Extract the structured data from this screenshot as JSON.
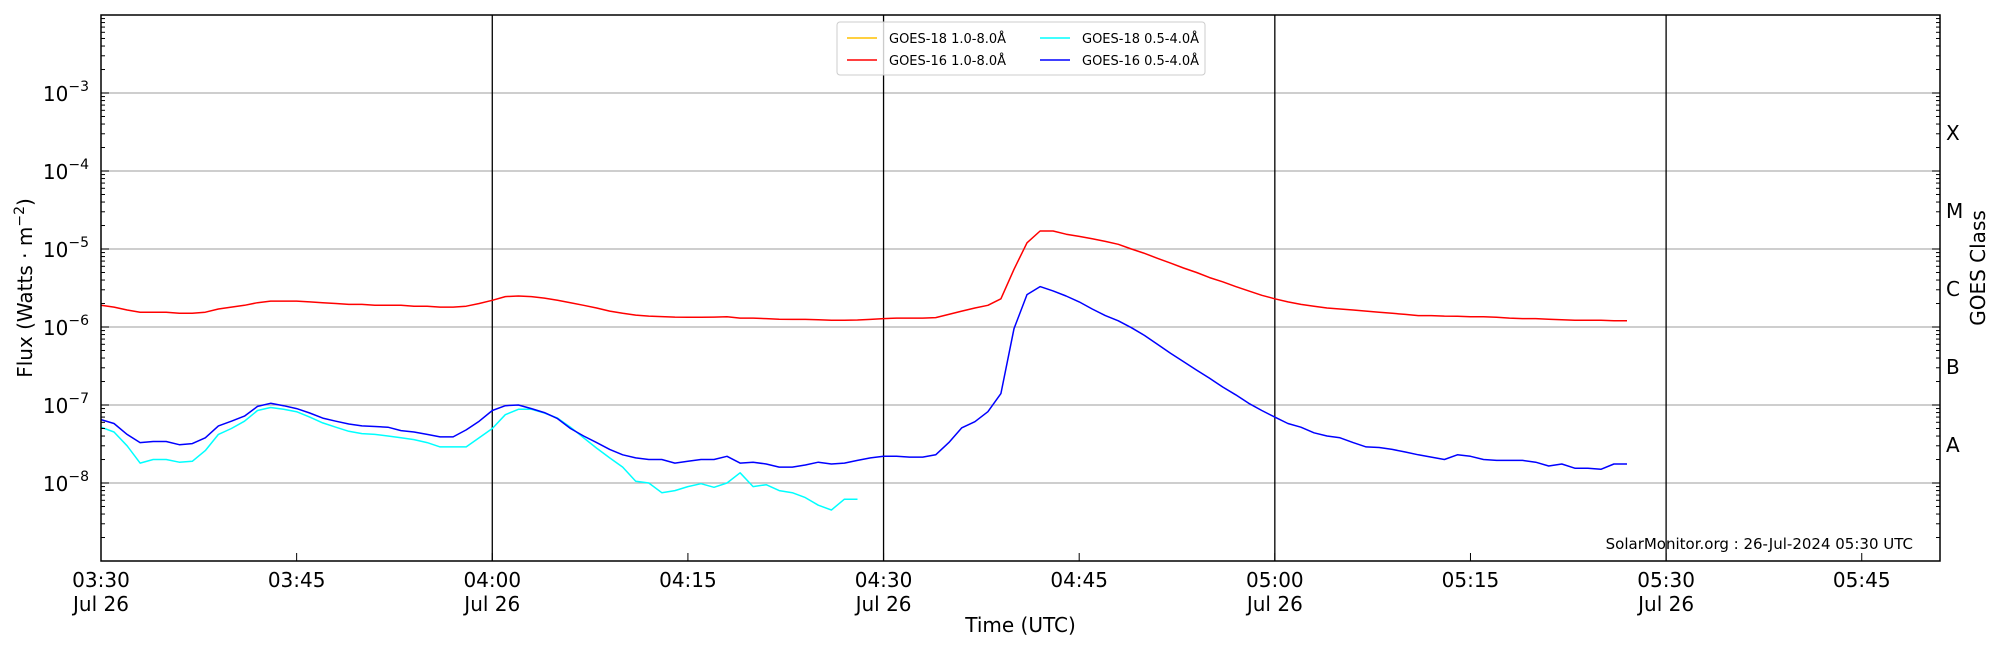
{
  "chart_data": {
    "type": "line",
    "title": "",
    "xlabel": "Time (UTC)",
    "ylabel": "Flux (Watts · m",
    "ylabel_exp": "−2",
    "ylabel_close": ")",
    "right_ylabel": "GOES Class",
    "yscale": "log",
    "ylim": [
      1e-09,
      0.01
    ],
    "xlim_minutes_after_start": [
      0,
      141
    ],
    "x_start": "03:30",
    "x_step_minutes": 1,
    "grid": "horizontal at decades",
    "legend_placement": "top-center",
    "watermark": "SolarMonitor.org : 26-Jul-2024 05:30 UTC",
    "x_ticks": [
      {
        "min": 0,
        "time": "03:30",
        "date": "Jul 26"
      },
      {
        "min": 15,
        "time": "03:45",
        "date": ""
      },
      {
        "min": 30,
        "time": "04:00",
        "date": "Jul 26"
      },
      {
        "min": 45,
        "time": "04:15",
        "date": ""
      },
      {
        "min": 60,
        "time": "04:30",
        "date": "Jul 26"
      },
      {
        "min": 75,
        "time": "04:45",
        "date": ""
      },
      {
        "min": 90,
        "time": "05:00",
        "date": "Jul 26"
      },
      {
        "min": 105,
        "time": "05:15",
        "date": ""
      },
      {
        "min": 120,
        "time": "05:30",
        "date": "Jul 26"
      },
      {
        "min": 135,
        "time": "05:45",
        "date": ""
      }
    ],
    "vertical_markers_min": [
      30,
      60,
      90,
      120
    ],
    "y_ticks": [
      {
        "exp": -3,
        "base": "10",
        "sup": "−3"
      },
      {
        "exp": -4,
        "base": "10",
        "sup": "−4"
      },
      {
        "exp": -5,
        "base": "10",
        "sup": "−5"
      },
      {
        "exp": -6,
        "base": "10",
        "sup": "−6"
      },
      {
        "exp": -7,
        "base": "10",
        "sup": "−7"
      },
      {
        "exp": -8,
        "base": "10",
        "sup": "−8"
      }
    ],
    "goes_classes": [
      {
        "label": "X",
        "log": -3.5
      },
      {
        "label": "M",
        "log": -4.5
      },
      {
        "label": "C",
        "log": -5.5
      },
      {
        "label": "B",
        "log": -6.5
      },
      {
        "label": "A",
        "log": -7.5
      }
    ],
    "series": [
      {
        "name": "GOES-18 1.0-8.0Å",
        "color": "#ffc000",
        "values": []
      },
      {
        "name": "GOES-16 1.0-8.0Å",
        "color": "#ff0000",
        "values": [
          1.9e-06,
          1.8e-06,
          1.65e-06,
          1.55e-06,
          1.55e-06,
          1.55e-06,
          1.5e-06,
          1.5e-06,
          1.55e-06,
          1.7e-06,
          1.8e-06,
          1.9e-06,
          2.05e-06,
          2.15e-06,
          2.15e-06,
          2.15e-06,
          2.1e-06,
          2.05e-06,
          2e-06,
          1.95e-06,
          1.95e-06,
          1.9e-06,
          1.9e-06,
          1.9e-06,
          1.85e-06,
          1.85e-06,
          1.8e-06,
          1.8e-06,
          1.85e-06,
          2e-06,
          2.2e-06,
          2.45e-06,
          2.5e-06,
          2.45e-06,
          2.35e-06,
          2.2e-06,
          2.05e-06,
          1.9e-06,
          1.75e-06,
          1.6e-06,
          1.5e-06,
          1.42e-06,
          1.38e-06,
          1.36e-06,
          1.34e-06,
          1.33e-06,
          1.33e-06,
          1.34e-06,
          1.35e-06,
          1.3e-06,
          1.3e-06,
          1.28e-06,
          1.26e-06,
          1.25e-06,
          1.25e-06,
          1.24e-06,
          1.22e-06,
          1.22e-06,
          1.23e-06,
          1.25e-06,
          1.28e-06,
          1.3e-06,
          1.3e-06,
          1.3e-06,
          1.32e-06,
          1.45e-06,
          1.6e-06,
          1.75e-06,
          1.9e-06,
          2.3e-06,
          5.5e-06,
          1.2e-05,
          1.7e-05,
          1.7e-05,
          1.55e-05,
          1.45e-05,
          1.35e-05,
          1.25e-05,
          1.15e-05,
          1e-05,
          8.8e-06,
          7.6e-06,
          6.6e-06,
          5.7e-06,
          5e-06,
          4.3e-06,
          3.8e-06,
          3.3e-06,
          2.9e-06,
          2.55e-06,
          2.3e-06,
          2.1e-06,
          1.95e-06,
          1.85e-06,
          1.75e-06,
          1.7e-06,
          1.65e-06,
          1.6e-06,
          1.55e-06,
          1.5e-06,
          1.45e-06,
          1.4e-06,
          1.4e-06,
          1.38e-06,
          1.37e-06,
          1.35e-06,
          1.35e-06,
          1.33e-06,
          1.3e-06,
          1.28e-06,
          1.28e-06,
          1.26e-06,
          1.24e-06,
          1.22e-06,
          1.22e-06,
          1.22e-06,
          1.2e-06,
          1.2e-06
        ]
      },
      {
        "name": "GOES-18 0.5-4.0Å",
        "color": "#00ffff",
        "values": [
          5.2e-08,
          4.5e-08,
          3e-08,
          1.8e-08,
          2e-08,
          2e-08,
          1.85e-08,
          1.9e-08,
          2.6e-08,
          4.2e-08,
          5e-08,
          6.2e-08,
          8.5e-08,
          9.3e-08,
          8.8e-08,
          8.2e-08,
          7e-08,
          5.9e-08,
          5.2e-08,
          4.6e-08,
          4.3e-08,
          4.2e-08,
          4e-08,
          3.8e-08,
          3.6e-08,
          3.3e-08,
          2.9e-08,
          2.9e-08,
          2.9e-08,
          3.8e-08,
          5e-08,
          7.5e-08,
          8.8e-08,
          8.8e-08,
          7.9e-08,
          6.8e-08,
          5.2e-08,
          3.8e-08,
          2.8e-08,
          2.1e-08,
          1.6e-08,
          1.05e-08,
          1e-08,
          7.5e-09,
          8e-09,
          9e-09,
          9.8e-09,
          8.8e-09,
          1e-08,
          1.35e-08,
          9e-09,
          9.5e-09,
          8e-09,
          7.5e-09,
          6.5e-09,
          5.2e-09,
          4.5e-09,
          6.2e-09,
          6.2e-09
        ]
      },
      {
        "name": "GOES-16 0.5-4.0Å",
        "color": "#0000ff",
        "values": [
          6.5e-08,
          5.8e-08,
          4.2e-08,
          3.3e-08,
          3.4e-08,
          3.4e-08,
          3.1e-08,
          3.2e-08,
          3.8e-08,
          5.4e-08,
          6.2e-08,
          7.2e-08,
          9.6e-08,
          1.05e-07,
          9.8e-08,
          9e-08,
          7.9e-08,
          6.8e-08,
          6.2e-08,
          5.7e-08,
          5.4e-08,
          5.3e-08,
          5.2e-08,
          4.7e-08,
          4.5e-08,
          4.2e-08,
          3.9e-08,
          3.9e-08,
          4.8e-08,
          6.2e-08,
          8.5e-08,
          9.8e-08,
          1e-07,
          9e-08,
          8e-08,
          6.7e-08,
          5e-08,
          4e-08,
          3.3e-08,
          2.7e-08,
          2.3e-08,
          2.1e-08,
          2e-08,
          2e-08,
          1.8e-08,
          1.9e-08,
          2e-08,
          2e-08,
          2.2e-08,
          1.8e-08,
          1.85e-08,
          1.75e-08,
          1.6e-08,
          1.6e-08,
          1.7e-08,
          1.85e-08,
          1.75e-08,
          1.8e-08,
          1.95e-08,
          2.1e-08,
          2.2e-08,
          2.2e-08,
          2.15e-08,
          2.15e-08,
          2.3e-08,
          3.3e-08,
          5.1e-08,
          6.1e-08,
          8.2e-08,
          1.4e-07,
          9.5e-07,
          2.6e-06,
          3.3e-06,
          2.9e-06,
          2.5e-06,
          2.1e-06,
          1.7e-06,
          1.4e-06,
          1.2e-06,
          9.8e-07,
          7.8e-07,
          6e-07,
          4.6e-07,
          3.6e-07,
          2.8e-07,
          2.2e-07,
          1.7e-07,
          1.35e-07,
          1.05e-07,
          8.5e-08,
          7e-08,
          5.8e-08,
          5.2e-08,
          4.4e-08,
          4e-08,
          3.8e-08,
          3.3e-08,
          2.9e-08,
          2.85e-08,
          2.7e-08,
          2.5e-08,
          2.3e-08,
          2.15e-08,
          2e-08,
          2.3e-08,
          2.2e-08,
          2e-08,
          1.95e-08,
          1.95e-08,
          1.95e-08,
          1.85e-08,
          1.65e-08,
          1.75e-08,
          1.55e-08,
          1.55e-08,
          1.5e-08,
          1.75e-08,
          1.75e-08
        ]
      }
    ]
  }
}
